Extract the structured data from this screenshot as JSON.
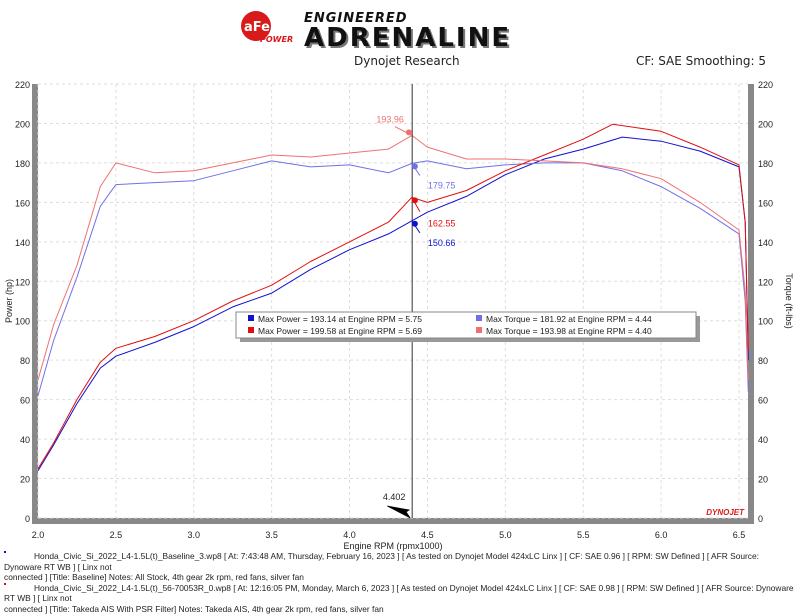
{
  "header": {
    "logo_brand": "aFe POWER",
    "logo_tagline_top": "ENGINEERED",
    "logo_tagline_main": "ADRENALINE",
    "subtitle": "Dynojet Research",
    "cf_info": "CF: SAE Smoothing: 5"
  },
  "watermark": "DYNOJET",
  "colors": {
    "run1_power": "#1010d0",
    "run1_torque": "#7070e8",
    "run2_power": "#e01010",
    "run2_torque": "#f07070"
  },
  "chart_data": {
    "type": "line",
    "xlabel": "Engine RPM (rpmx1000)",
    "ylabel": "Power (hp)",
    "y2label": "Torque (ft-lbs)",
    "xlim": [
      2.0,
      6.56
    ],
    "ylim": [
      0,
      220
    ],
    "y2lim": [
      0,
      220
    ],
    "xticks": [
      "2.0",
      "2.5",
      "3.0",
      "3.5",
      "4.0",
      "4.5",
      "5.0",
      "5.5",
      "6.0",
      "6.5"
    ],
    "yticks": [
      "0",
      "20",
      "40",
      "60",
      "80",
      "100",
      "120",
      "140",
      "160",
      "180",
      "200",
      "220"
    ],
    "grid": true,
    "cursor_x": "4.402",
    "series": [
      {
        "name": "Max Power = 193.14 at Engine RPM = 5.75",
        "color": "#1010d0",
        "x": [
          2.0,
          2.1,
          2.25,
          2.4,
          2.5,
          2.75,
          3.0,
          3.25,
          3.5,
          3.75,
          4.0,
          4.25,
          4.4,
          4.5,
          4.75,
          5.0,
          5.25,
          5.5,
          5.75,
          6.0,
          6.25,
          6.5,
          6.54,
          6.56
        ],
        "y": [
          24,
          37,
          58,
          76,
          82,
          89,
          97,
          107,
          114,
          126,
          136,
          144,
          150.66,
          155,
          163,
          174,
          182,
          187,
          193.1,
          191,
          186,
          178,
          150,
          80
        ]
      },
      {
        "name": "Max Torque = 181.92 at Engine RPM = 4.44",
        "color": "#7070e8",
        "x": [
          2.0,
          2.1,
          2.25,
          2.4,
          2.5,
          2.75,
          3.0,
          3.25,
          3.5,
          3.75,
          4.0,
          4.25,
          4.4,
          4.5,
          4.75,
          5.0,
          5.25,
          5.5,
          5.75,
          6.0,
          6.25,
          6.5,
          6.54,
          6.56
        ],
        "y": [
          62,
          90,
          122,
          158,
          169,
          170,
          171,
          176,
          181,
          178,
          179,
          175,
          179.75,
          181,
          177,
          179,
          180,
          180,
          176,
          168,
          157,
          144,
          110,
          64
        ]
      },
      {
        "name": "Max Power = 199.58 at Engine RPM = 5.69",
        "color": "#e01010",
        "x": [
          2.0,
          2.1,
          2.25,
          2.4,
          2.5,
          2.75,
          3.0,
          3.25,
          3.5,
          3.75,
          4.0,
          4.25,
          4.4,
          4.5,
          4.75,
          5.0,
          5.25,
          5.5,
          5.69,
          6.0,
          6.25,
          6.5,
          6.54,
          6.56
        ],
        "y": [
          25,
          38,
          60,
          79,
          86,
          92,
          100,
          110,
          118,
          130,
          140,
          150,
          162.55,
          160,
          166,
          176,
          184,
          192,
          199.6,
          196,
          188,
          179,
          150,
          85
        ]
      },
      {
        "name": "Max Torque = 193.98 at Engine RPM = 4.40",
        "color": "#f07070",
        "x": [
          2.0,
          2.1,
          2.25,
          2.4,
          2.5,
          2.75,
          3.0,
          3.25,
          3.5,
          3.75,
          4.0,
          4.25,
          4.4,
          4.5,
          4.75,
          5.0,
          5.25,
          5.5,
          5.75,
          6.0,
          6.25,
          6.5,
          6.54,
          6.56
        ],
        "y": [
          70,
          98,
          128,
          168,
          180,
          175,
          176,
          180,
          184,
          183,
          185,
          187,
          193.96,
          188,
          182,
          182,
          181,
          180,
          177,
          172,
          160,
          146,
          115,
          70
        ]
      }
    ],
    "annotations": [
      {
        "text": "193.96",
        "x": 4.4,
        "y": 193.96,
        "color": "#f07070"
      },
      {
        "text": "179.75",
        "x": 4.4,
        "y": 179.75,
        "color": "#7070e8"
      },
      {
        "text": "162.55",
        "x": 4.4,
        "y": 162.55,
        "color": "#e01010"
      },
      {
        "text": "150.66",
        "x": 4.4,
        "y": 150.66,
        "color": "#1010d0"
      }
    ],
    "legend_position": "center"
  },
  "notes": [
    {
      "line1": "Honda_Civic_Si_2022_L4-1.5L(t)_Baseline_3.wp8 [ At: 7:43:48 AM, Thursday, February 16, 2023 ] [ As tested on Dynojet Model 424xLC Linx ] [ CF: SAE 0.96 ] [ RPM: SW Defined ] [ AFR Source: Dynoware RT WB ] [ Linx not",
      "line2": "connected ] [Title: Baseline]  Notes: All Stock, 4th gear 2k rpm, red fans, silver fan",
      "color": "#1010d0"
    },
    {
      "line1": "Honda_Civic_Si_2022_L4-1.5L(t)_56-70053R_0.wp8 [ At: 12:16:05 PM, Monday, March 6, 2023 ] [ As tested on Dynojet Model 424xLC Linx ] [ CF: SAE 0.98 ] [ RPM: SW Defined ] [ AFR Source: Dynoware RT WB ] [ Linx not",
      "line2": "connected ] [Title: Takeda AIS With PSR Filter]  Notes: Takeda AIS, 4th gear 2k rpm, red fans, silver fan",
      "color": "#e01010"
    }
  ]
}
